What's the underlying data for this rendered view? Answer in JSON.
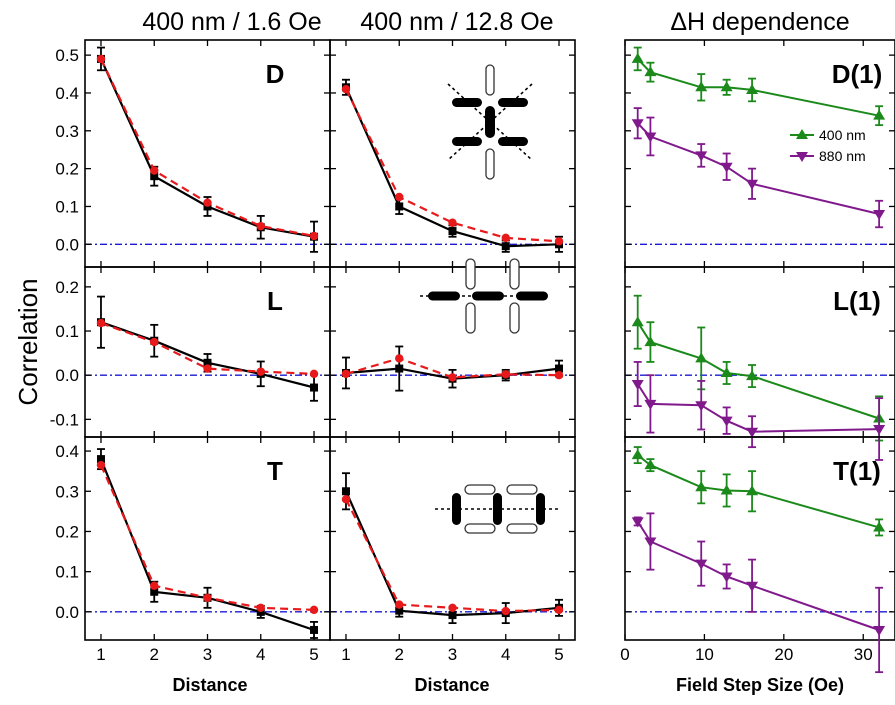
{
  "figure": {
    "titles": [
      "400 nm / 1.6 Oe",
      "400 nm / 12.8 Oe",
      "ΔH dependence"
    ],
    "ylabel": "Correlation",
    "xlabels": [
      "Distance",
      "Distance",
      "Field Step Size (Oe)"
    ],
    "colors": {
      "measured": "#000000",
      "fit": "#e8191b",
      "zero_line": "#1a1ad6",
      "nm400": "#1b8a1b",
      "nm880": "#80198c"
    },
    "inset_icons": [
      "diagonal-lattice-icon",
      "longitudinal-lattice-icon",
      "transverse-lattice-icon"
    ]
  },
  "chart_data": [
    {
      "type": "line",
      "panel": "D",
      "column": "400 nm / 1.6 Oe",
      "label": "D",
      "x": [
        1,
        2,
        3,
        4,
        5
      ],
      "xlim": [
        0.7,
        5.3
      ],
      "ylim": [
        -0.06,
        0.54
      ],
      "yticks": [
        0.0,
        0.1,
        0.2,
        0.3,
        0.4,
        0.5
      ],
      "ytick_labels": [
        "0.0",
        "0.1",
        "0.2",
        "0.3",
        "0.4",
        "0.5"
      ],
      "series": [
        {
          "role": "measured",
          "style": "solid-square",
          "values": [
            0.49,
            0.18,
            0.1,
            0.045,
            0.02
          ],
          "err": [
            0.03,
            0.025,
            0.025,
            0.03,
            0.04
          ]
        },
        {
          "role": "fit",
          "style": "dashed-circle",
          "values": [
            0.49,
            0.195,
            0.11,
            0.048,
            0.022
          ]
        }
      ]
    },
    {
      "type": "line",
      "panel": "D",
      "column": "400 nm / 12.8 Oe",
      "x": [
        1,
        2,
        3,
        4,
        5
      ],
      "xlim": [
        0.7,
        5.3
      ],
      "ylim": [
        -0.06,
        0.54
      ],
      "series": [
        {
          "role": "measured",
          "style": "solid-square",
          "values": [
            0.415,
            0.1,
            0.035,
            -0.005,
            0.0
          ],
          "err": [
            0.02,
            0.02,
            0.015,
            0.015,
            0.02
          ]
        },
        {
          "role": "fit",
          "style": "dashed-circle",
          "values": [
            0.41,
            0.125,
            0.057,
            0.017,
            0.008
          ]
        }
      ]
    },
    {
      "type": "line",
      "panel": "D(1)",
      "column": "ΔH dependence",
      "label": "D(1)",
      "x_data": true,
      "xlim": [
        0,
        34
      ],
      "ylim": [
        -0.06,
        0.54
      ],
      "legend": {
        "placement": "right",
        "entries": [
          "400 nm",
          "880 nm"
        ]
      },
      "series": [
        {
          "name": "400 nm",
          "role": "nm400",
          "marker": "up",
          "x": [
            1.6,
            3.2,
            9.6,
            12.8,
            16,
            32
          ],
          "values": [
            0.49,
            0.455,
            0.415,
            0.415,
            0.408,
            0.34
          ],
          "err": [
            0.03,
            0.025,
            0.035,
            0.02,
            0.03,
            0.025
          ]
        },
        {
          "name": "880 nm",
          "role": "nm880",
          "marker": "down",
          "x": [
            1.6,
            3.2,
            9.6,
            12.8,
            16,
            32
          ],
          "values": [
            0.32,
            0.285,
            0.235,
            0.205,
            0.16,
            0.08
          ],
          "err": [
            0.04,
            0.05,
            0.03,
            0.035,
            0.04,
            0.035
          ]
        }
      ]
    },
    {
      "type": "line",
      "panel": "L",
      "column": "400 nm / 1.6 Oe",
      "label": "L",
      "x": [
        1,
        2,
        3,
        4,
        5
      ],
      "xlim": [
        0.7,
        5.3
      ],
      "ylim": [
        -0.14,
        0.245
      ],
      "yticks": [
        -0.1,
        0.0,
        0.1,
        0.2
      ],
      "ytick_labels": [
        "-0.1",
        "0.0",
        "0.1",
        "0.2"
      ],
      "series": [
        {
          "role": "measured",
          "style": "solid-square",
          "values": [
            0.12,
            0.078,
            0.028,
            0.003,
            -0.028
          ],
          "err": [
            0.058,
            0.036,
            0.02,
            0.028,
            0.03
          ]
        },
        {
          "role": "fit",
          "style": "dashed-circle",
          "values": [
            0.118,
            0.075,
            0.015,
            0.008,
            0.003
          ]
        }
      ]
    },
    {
      "type": "line",
      "panel": "L",
      "column": "400 nm / 12.8 Oe",
      "x": [
        1,
        2,
        3,
        4,
        5
      ],
      "xlim": [
        0.7,
        5.3
      ],
      "ylim": [
        -0.14,
        0.245
      ],
      "series": [
        {
          "role": "measured",
          "style": "solid-square",
          "values": [
            0.005,
            0.015,
            -0.008,
            0.0,
            0.015
          ],
          "err": [
            0.035,
            0.05,
            0.02,
            0.012,
            0.018
          ]
        },
        {
          "role": "fit",
          "style": "dashed-circle",
          "values": [
            0.003,
            0.038,
            -0.005,
            0.002,
            0.0
          ]
        }
      ]
    },
    {
      "type": "line",
      "panel": "L(1)",
      "column": "ΔH dependence",
      "label": "L(1)",
      "x_data": true,
      "xlim": [
        0,
        34
      ],
      "ylim": [
        -0.14,
        0.245
      ],
      "series": [
        {
          "name": "400 nm",
          "role": "nm400",
          "marker": "up",
          "x": [
            1.6,
            3.2,
            9.6,
            12.8,
            16,
            32
          ],
          "values": [
            0.12,
            0.075,
            0.038,
            0.005,
            -0.002,
            -0.098
          ],
          "err": [
            0.06,
            0.045,
            0.07,
            0.025,
            0.025,
            0.05
          ]
        },
        {
          "name": "880 nm",
          "role": "nm880",
          "marker": "down",
          "x": [
            1.6,
            3.2,
            9.6,
            12.8,
            16,
            32
          ],
          "values": [
            -0.02,
            -0.065,
            -0.068,
            -0.103,
            -0.128,
            -0.122
          ],
          "err": [
            0.05,
            0.065,
            0.055,
            0.03,
            0.035,
            0.07
          ]
        }
      ]
    },
    {
      "type": "line",
      "panel": "T",
      "column": "400 nm / 1.6 Oe",
      "label": "T",
      "x": [
        1,
        2,
        3,
        4,
        5
      ],
      "xlim": [
        0.7,
        5.3
      ],
      "ylim": [
        -0.07,
        0.435
      ],
      "yticks": [
        0.0,
        0.1,
        0.2,
        0.3,
        0.4
      ],
      "ytick_labels": [
        "0.0",
        "0.1",
        "0.2",
        "0.3",
        "0.4"
      ],
      "series": [
        {
          "role": "measured",
          "style": "solid-square",
          "values": [
            0.38,
            0.05,
            0.035,
            0.0,
            -0.045
          ],
          "err": [
            0.025,
            0.025,
            0.025,
            0.015,
            0.02
          ]
        },
        {
          "role": "fit",
          "style": "dashed-circle",
          "values": [
            0.365,
            0.065,
            0.035,
            0.01,
            0.005
          ]
        }
      ]
    },
    {
      "type": "line",
      "panel": "T",
      "column": "400 nm / 12.8 Oe",
      "x": [
        1,
        2,
        3,
        4,
        5
      ],
      "xlim": [
        0.7,
        5.3
      ],
      "ylim": [
        -0.07,
        0.435
      ],
      "series": [
        {
          "role": "measured",
          "style": "solid-square",
          "values": [
            0.3,
            0.003,
            -0.008,
            -0.003,
            0.01
          ],
          "err": [
            0.045,
            0.015,
            0.02,
            0.025,
            0.02
          ]
        },
        {
          "role": "fit",
          "style": "dashed-circle",
          "values": [
            0.28,
            0.018,
            0.01,
            0.002,
            0.005
          ]
        }
      ]
    },
    {
      "type": "line",
      "panel": "T(1)",
      "column": "ΔH dependence",
      "label": "T(1)",
      "x_data": true,
      "xlim": [
        0,
        34
      ],
      "ylim": [
        -0.07,
        0.435
      ],
      "xticks": [
        0,
        10,
        20,
        30
      ],
      "xtick_labels": [
        "0",
        "10",
        "20",
        "30"
      ],
      "series": [
        {
          "name": "400 nm",
          "role": "nm400",
          "marker": "up",
          "x": [
            1.6,
            3.2,
            9.6,
            12.8,
            16,
            32
          ],
          "values": [
            0.39,
            0.365,
            0.31,
            0.302,
            0.3,
            0.21
          ],
          "err": [
            0.02,
            0.015,
            0.04,
            0.04,
            0.05,
            0.02
          ]
        },
        {
          "name": "880 nm",
          "role": "nm880",
          "marker": "down",
          "x": [
            1.6,
            3.2,
            9.6,
            12.8,
            16,
            32
          ],
          "values": [
            0.225,
            0.175,
            0.12,
            0.088,
            0.065,
            -0.045
          ],
          "err": [
            0.01,
            0.07,
            0.055,
            0.03,
            0.065,
            0.105
          ]
        }
      ]
    }
  ],
  "distance_ticks": [
    "1",
    "2",
    "3",
    "4",
    "5"
  ]
}
